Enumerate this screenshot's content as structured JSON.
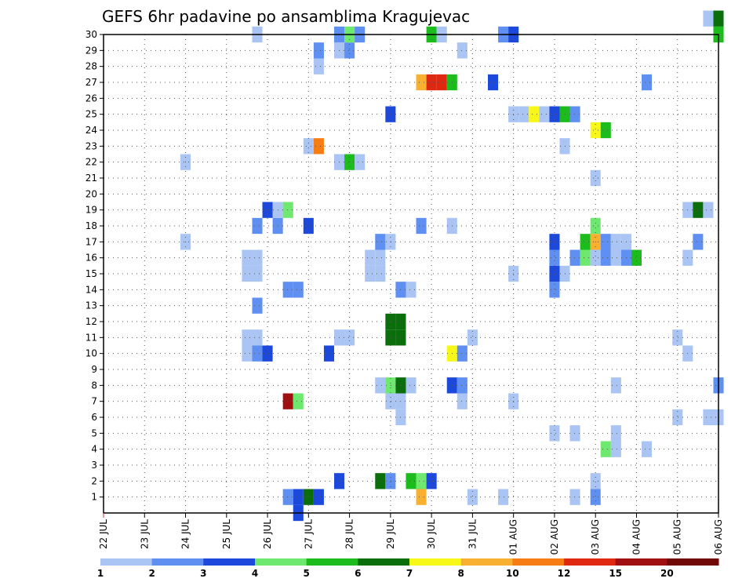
{
  "chart_data": {
    "type": "heatmap",
    "title": "GEFS 6hr padavine po ansamblima Kragujevac",
    "xlabel": "",
    "ylabel": "",
    "x_ticks": [
      "22 JUL",
      "23 JUL",
      "24 JUL",
      "25 JUL",
      "26 JUL",
      "27 JUL",
      "28 JUL",
      "29 JUL",
      "30 JUL",
      "31 JUL",
      "01 AUG",
      "02 AUG",
      "03 AUG",
      "04 AUG",
      "05 AUG",
      "06 AUG"
    ],
    "y_ticks": [
      "1",
      "2",
      "3",
      "4",
      "5",
      "6",
      "7",
      "8",
      "9",
      "10",
      "11",
      "12",
      "13",
      "14",
      "15",
      "16",
      "17",
      "18",
      "19",
      "20",
      "21",
      "22",
      "23",
      "24",
      "25",
      "26",
      "27",
      "28",
      "29",
      "30"
    ],
    "xlim": [
      0,
      60
    ],
    "ylim": [
      0,
      30
    ],
    "grid": true,
    "legend_position": "bottom",
    "colorbar": {
      "labels": [
        "1",
        "2",
        "3",
        "4",
        "5",
        "6",
        "7",
        "8",
        "10",
        "12",
        "15",
        "20"
      ],
      "colors": [
        "#aac4f4",
        "#5f8ff0",
        "#1c48dc",
        "#6ee86e",
        "#1cbc1c",
        "#0a6e0a",
        "#f8f818",
        "#f8b030",
        "#f87c14",
        "#e02810",
        "#a01010",
        "#700808"
      ]
    },
    "cells": [
      [
        18,
        1,
        1
      ],
      [
        19,
        1,
        2
      ],
      [
        20,
        1,
        5
      ],
      [
        21,
        1,
        2
      ],
      [
        31,
        1,
        7
      ],
      [
        36,
        1,
        0
      ],
      [
        39,
        1,
        0
      ],
      [
        46,
        1,
        0
      ],
      [
        48,
        1,
        1
      ],
      [
        19,
        0,
        2
      ],
      [
        23,
        2,
        2
      ],
      [
        27,
        2,
        5
      ],
      [
        28,
        2,
        1
      ],
      [
        30,
        2,
        4
      ],
      [
        31,
        2,
        3
      ],
      [
        32,
        2,
        2
      ],
      [
        48,
        2,
        0
      ],
      [
        49,
        4,
        3
      ],
      [
        50,
        4,
        0
      ],
      [
        53,
        4,
        0
      ],
      [
        44,
        5,
        0
      ],
      [
        46,
        5,
        0
      ],
      [
        50,
        5,
        0
      ],
      [
        29,
        6,
        0
      ],
      [
        56,
        6,
        0
      ],
      [
        59,
        6,
        0
      ],
      [
        60,
        6,
        0
      ],
      [
        18,
        7,
        10
      ],
      [
        19,
        7,
        3
      ],
      [
        28,
        7,
        0
      ],
      [
        29,
        7,
        0
      ],
      [
        35,
        7,
        0
      ],
      [
        40,
        7,
        0
      ],
      [
        27,
        8,
        0
      ],
      [
        28,
        8,
        3
      ],
      [
        29,
        8,
        5
      ],
      [
        30,
        8,
        0
      ],
      [
        34,
        8,
        2
      ],
      [
        35,
        8,
        1
      ],
      [
        50,
        8,
        0
      ],
      [
        60,
        8,
        1
      ],
      [
        14,
        10,
        0
      ],
      [
        15,
        10,
        1
      ],
      [
        16,
        10,
        2
      ],
      [
        22,
        10,
        2
      ],
      [
        34,
        10,
        6
      ],
      [
        35,
        10,
        1
      ],
      [
        57,
        10,
        0
      ],
      [
        14,
        11,
        0
      ],
      [
        15,
        11,
        0
      ],
      [
        23,
        11,
        0
      ],
      [
        24,
        11,
        0
      ],
      [
        28,
        11,
        5
      ],
      [
        29,
        11,
        5
      ],
      [
        36,
        11,
        0
      ],
      [
        56,
        11,
        0
      ],
      [
        28,
        12,
        5
      ],
      [
        29,
        12,
        5
      ],
      [
        15,
        13,
        1
      ],
      [
        18,
        14,
        1
      ],
      [
        19,
        14,
        1
      ],
      [
        29,
        14,
        1
      ],
      [
        30,
        14,
        0
      ],
      [
        44,
        14,
        1
      ],
      [
        14,
        15,
        0
      ],
      [
        15,
        15,
        0
      ],
      [
        26,
        15,
        0
      ],
      [
        27,
        15,
        0
      ],
      [
        40,
        15,
        0
      ],
      [
        44,
        15,
        2
      ],
      [
        45,
        15,
        0
      ],
      [
        14,
        16,
        0
      ],
      [
        15,
        16,
        0
      ],
      [
        26,
        16,
        0
      ],
      [
        27,
        16,
        0
      ],
      [
        44,
        16,
        1
      ],
      [
        46,
        16,
        1
      ],
      [
        47,
        16,
        3
      ],
      [
        48,
        16,
        0
      ],
      [
        49,
        16,
        1
      ],
      [
        50,
        16,
        0
      ],
      [
        51,
        16,
        1
      ],
      [
        52,
        16,
        4
      ],
      [
        57,
        16,
        0
      ],
      [
        44,
        17,
        2
      ],
      [
        47,
        17,
        4
      ],
      [
        48,
        17,
        7
      ],
      [
        49,
        17,
        1
      ],
      [
        50,
        17,
        0
      ],
      [
        51,
        17,
        0
      ],
      [
        8,
        17,
        0
      ],
      [
        27,
        17,
        1
      ],
      [
        28,
        17,
        0
      ],
      [
        48,
        18,
        3
      ],
      [
        58,
        17,
        1
      ],
      [
        15,
        18,
        1
      ],
      [
        17,
        18,
        1
      ],
      [
        20,
        18,
        2
      ],
      [
        31,
        18,
        1
      ],
      [
        34,
        18,
        0
      ],
      [
        16,
        19,
        2
      ],
      [
        17,
        19,
        0
      ],
      [
        18,
        19,
        3
      ],
      [
        57,
        19,
        0
      ],
      [
        58,
        19,
        5
      ],
      [
        59,
        19,
        0
      ],
      [
        48,
        21,
        0
      ],
      [
        8,
        22,
        0
      ],
      [
        23,
        22,
        0
      ],
      [
        24,
        22,
        4
      ],
      [
        25,
        22,
        0
      ],
      [
        20,
        23,
        0
      ],
      [
        21,
        23,
        8
      ],
      [
        45,
        23,
        0
      ],
      [
        48,
        24,
        6
      ],
      [
        49,
        24,
        4
      ],
      [
        28,
        25,
        2
      ],
      [
        40,
        25,
        0
      ],
      [
        41,
        25,
        0
      ],
      [
        42,
        25,
        6
      ],
      [
        43,
        25,
        0
      ],
      [
        44,
        25,
        2
      ],
      [
        45,
        25,
        4
      ],
      [
        46,
        25,
        1
      ],
      [
        31,
        27,
        7
      ],
      [
        32,
        27,
        9
      ],
      [
        33,
        27,
        9
      ],
      [
        34,
        27,
        4
      ],
      [
        38,
        27,
        2
      ],
      [
        53,
        27,
        1
      ],
      [
        21,
        28,
        0
      ],
      [
        21,
        29,
        1
      ],
      [
        23,
        29,
        0
      ],
      [
        24,
        29,
        1
      ],
      [
        35,
        29,
        0
      ],
      [
        15,
        30,
        0
      ],
      [
        23,
        30,
        1
      ],
      [
        24,
        30,
        3
      ],
      [
        25,
        30,
        1
      ],
      [
        32,
        30,
        4
      ],
      [
        33,
        30,
        0
      ],
      [
        39,
        30,
        1
      ],
      [
        40,
        30,
        2
      ],
      [
        60,
        30,
        4
      ],
      [
        59,
        31,
        0
      ],
      [
        60,
        31,
        5
      ]
    ]
  }
}
